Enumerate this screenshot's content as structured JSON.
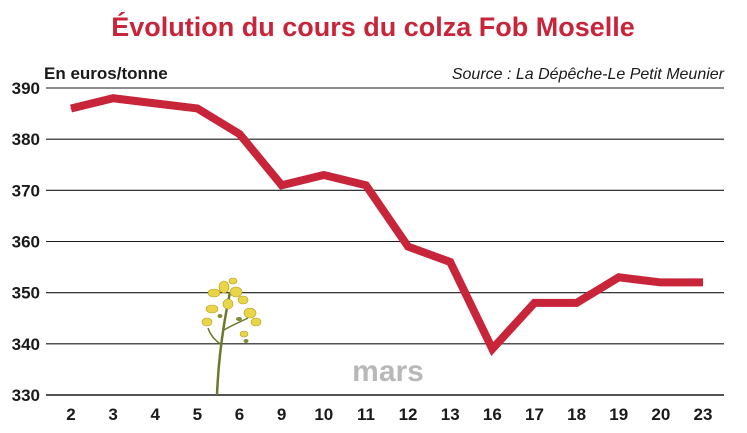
{
  "chart_data": {
    "type": "line",
    "title": "Évolution du cours du colza Fob Moselle",
    "unit_label": "En euros/tonne",
    "source": "Source : La Dépêche-Le Petit Meunier",
    "period_label": "mars",
    "categories": [
      "2",
      "3",
      "4",
      "5",
      "6",
      "9",
      "10",
      "11",
      "12",
      "13",
      "16",
      "17",
      "18",
      "19",
      "20",
      "23"
    ],
    "series": [
      {
        "values": [
          386,
          388,
          387,
          386,
          381,
          371,
          373,
          371,
          359,
          356,
          339,
          348,
          348,
          353,
          352,
          352
        ]
      }
    ],
    "ylim": [
      330,
      390
    ],
    "yticks": [
      330,
      340,
      350,
      360,
      370,
      380,
      390
    ],
    "grid": true,
    "colors": {
      "line": "#c8243a",
      "title": "#c8243a",
      "grid": "#1a1a1a",
      "month": "#b8b8b8"
    },
    "decoration": "rapeseed-flower-icon"
  }
}
